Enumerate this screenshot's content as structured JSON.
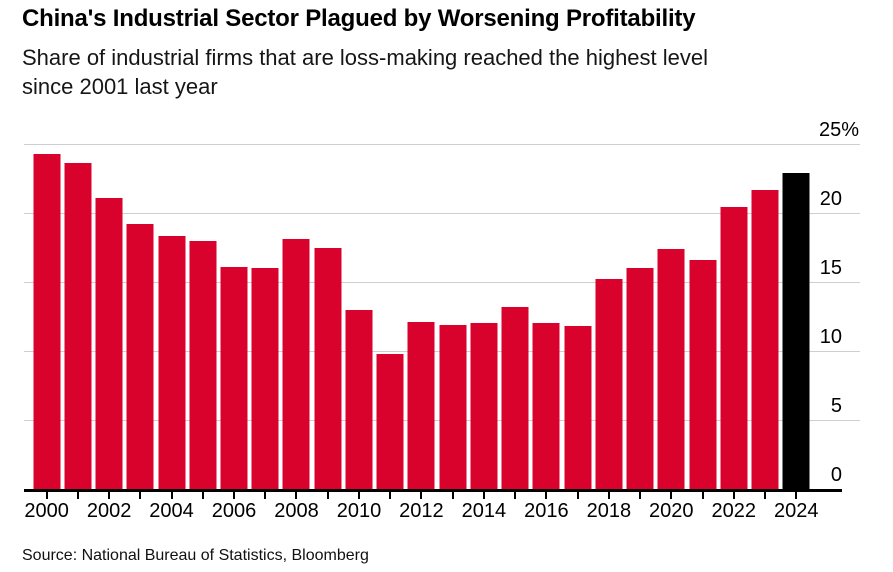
{
  "header": {
    "title": "China's Industrial Sector Plagued by Worsening Profitability",
    "subtitle_lines": [
      "Share of industrial firms that are loss-making reached the highest level",
      "since 2001 last year"
    ]
  },
  "source_note": "Source: National Bureau of Statistics, Bloomberg",
  "colors": {
    "bar": "#d8022c",
    "highlight_bar": "#000000",
    "gridline": "#cfcfcf",
    "axis": "#000000",
    "text": "#000000"
  },
  "chart_data": {
    "type": "bar",
    "title": "China's Industrial Sector Plagued by Worsening Profitability",
    "subtitle": "Share of industrial firms that are loss-making reached the highest level since 2001 last year",
    "source": "Source: National Bureau of Statistics, Bloomberg",
    "categories": [
      "2000",
      "2001",
      "2002",
      "2003",
      "2004",
      "2005",
      "2006",
      "2007",
      "2008",
      "2009",
      "2010",
      "2011",
      "2012",
      "2013",
      "2014",
      "2015",
      "2016",
      "2017",
      "2018",
      "2019",
      "2020",
      "2021",
      "2022",
      "2023",
      "2024"
    ],
    "values": [
      24.3,
      23.6,
      21.1,
      19.2,
      18.3,
      18.0,
      16.1,
      16.0,
      18.1,
      17.5,
      13.0,
      9.8,
      12.1,
      11.9,
      12.0,
      13.2,
      12.0,
      11.8,
      15.2,
      16.0,
      17.4,
      16.6,
      20.4,
      21.7,
      22.9
    ],
    "unit": "%",
    "ylim": [
      0,
      25
    ],
    "yticks": [
      0,
      5,
      10,
      15,
      20,
      25
    ],
    "ytick_labels": [
      "0",
      "5",
      "10",
      "15",
      "20",
      "25%"
    ],
    "xtick_labels": [
      "2000",
      "2002",
      "2004",
      "2006",
      "2008",
      "2010",
      "2012",
      "2014",
      "2016",
      "2018",
      "2020",
      "2022",
      "2024"
    ],
    "highlight_category": "2024",
    "grid": true,
    "y_axis_side": "right",
    "legend": null
  }
}
